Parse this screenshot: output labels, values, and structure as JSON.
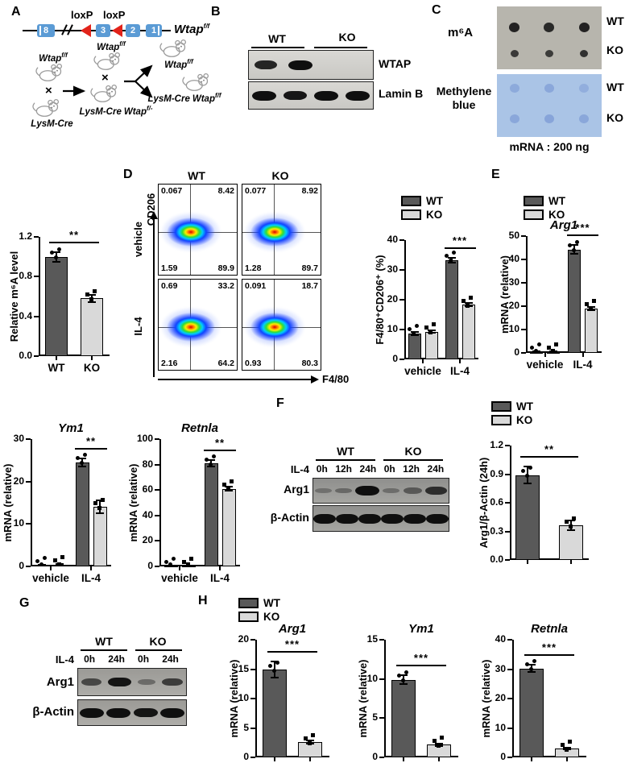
{
  "legend": {
    "wt": "WT",
    "ko": "KO"
  },
  "colors": {
    "wt": "#595959",
    "ko": "#d9d9d9",
    "exon": "#5b9bd5",
    "loxp": "#e2231a"
  },
  "panels": {
    "a": {
      "label": "A",
      "loxp_labels": [
        "loxP",
        "loxP"
      ],
      "exons": [
        "8",
        "3",
        "2",
        "1"
      ],
      "allele": {
        "base": "Wtap",
        "sup": "f/f"
      },
      "cross_symbol": "×",
      "mice": {
        "p_top": {
          "base": "Wtap",
          "sup": "f/f"
        },
        "p_bottom": {
          "pre": "LysM-Cre"
        },
        "f1_top": {
          "base": "Wtap",
          "sup": "f/f"
        },
        "f1_bottom": {
          "pre": "LysM-Cre",
          "base": "Wtap",
          "sup": "f/-"
        },
        "f2_top": {
          "base": "Wtap",
          "sup": "f/f"
        },
        "f2_bottom": {
          "pre": "LysM-Cre",
          "base": "Wtap",
          "sup": "f/f"
        }
      }
    },
    "b": {
      "label": "B",
      "groups": [
        "WT",
        "KO"
      ],
      "rows": [
        {
          "label": "WTAP",
          "bands": [
            0.85,
            1,
            0,
            0
          ]
        },
        {
          "label": "Lamin B",
          "bands": [
            1,
            0.95,
            1,
            1
          ]
        }
      ]
    },
    "c": {
      "label": "C",
      "m6a_label": "m⁶A",
      "mb_label_1": "Methylene",
      "mb_label_2": "blue",
      "row_labels": [
        "WT",
        "KO",
        "WT",
        "KO"
      ],
      "caption": "mRNA : 200 ng",
      "m6a": {
        "wt": [
          0.95,
          0.9,
          0.95
        ],
        "ko": [
          0.8,
          0.78,
          0.85
        ]
      },
      "mb": {
        "wt": [
          0.5,
          0.55,
          0.4
        ],
        "ko": [
          0.55,
          0.6,
          0.55
        ]
      }
    },
    "d": {
      "label": "D",
      "col_headers": [
        "WT",
        "KO"
      ],
      "row_labels": [
        "vehicle",
        "IL-4"
      ],
      "y_axis": "CD206",
      "x_axis": "F4/80",
      "plots": [
        {
          "quad": [
            "0.067",
            "8.42",
            "1.59",
            "89.9"
          ]
        },
        {
          "quad": [
            "0.077",
            "8.92",
            "1.28",
            "89.7"
          ]
        },
        {
          "quad": [
            "0.69",
            "33.2",
            "2.16",
            "64.2"
          ]
        },
        {
          "quad": [
            "0.091",
            "18.7",
            "0.93",
            "80.3"
          ]
        }
      ]
    },
    "e": {
      "label": "E"
    },
    "f": {
      "label": "F",
      "il4": "IL-4",
      "groups": [
        "WT",
        "KO"
      ],
      "timepoints": [
        "0h",
        "12h",
        "24h",
        "0h",
        "12h",
        "24h"
      ],
      "rows": [
        {
          "label": "Arg1",
          "bands": [
            0.06,
            0.14,
            1,
            0.1,
            0.3,
            0.72
          ]
        },
        {
          "label": "β-Actin",
          "bands": [
            1,
            1,
            1,
            1,
            1,
            1
          ]
        }
      ]
    },
    "g": {
      "label": "G",
      "il4": "IL-4",
      "groups": [
        "WT",
        "KO"
      ],
      "timepoints": [
        "0h",
        "24h",
        "0h",
        "24h"
      ],
      "rows": [
        {
          "label": "Arg1",
          "bands": [
            0.5,
            0.95,
            0.18,
            0.6
          ]
        },
        {
          "label": "β-Actin",
          "bands": [
            1,
            1,
            0.95,
            1
          ]
        }
      ]
    },
    "h": {
      "label": "H"
    }
  },
  "chart_data": [
    {
      "id": "relative-m6a",
      "type": "bar",
      "title": "",
      "ylabel": "Relative m⁶A level",
      "ylim": [
        0,
        1.2
      ],
      "yticks": [
        "0.0",
        "0.4",
        "0.8",
        "1.2"
      ],
      "categories": [
        ""
      ],
      "xlabels": "series",
      "series": [
        {
          "name": "WT",
          "values": [
            1.0
          ],
          "errors": [
            0.05
          ]
        },
        {
          "name": "KO",
          "values": [
            0.58
          ],
          "errors": [
            0.04
          ]
        }
      ],
      "sig": {
        "label": "**",
        "category": 0
      }
    },
    {
      "id": "f480-cd206-pct",
      "type": "bar",
      "title": "",
      "ylabel": "F4/80⁺CD206⁺ (%)",
      "ylim": [
        0,
        40
      ],
      "yticks": [
        "0",
        "10",
        "20",
        "30",
        "40"
      ],
      "categories": [
        "vehicle",
        "IL-4"
      ],
      "xlabels": "categories",
      "series": [
        {
          "name": "WT",
          "values": [
            8.7,
            33.3
          ],
          "errors": [
            0.5,
            0.8
          ]
        },
        {
          "name": "KO",
          "values": [
            9.2,
            18.3
          ],
          "errors": [
            0.4,
            0.5
          ]
        }
      ],
      "sig": {
        "label": "***",
        "category": 1
      }
    },
    {
      "id": "arg1-mrna-e",
      "type": "bar",
      "title": "Arg1",
      "ylabel": "mRNA (relative)",
      "ylim": [
        0,
        50
      ],
      "yticks": [
        "0",
        "10",
        "20",
        "30",
        "40",
        "50"
      ],
      "categories": [
        "vehicle",
        "IL-4"
      ],
      "xlabels": "categories",
      "series": [
        {
          "name": "WT",
          "values": [
            0.4,
            44.3
          ],
          "errors": [
            0.2,
            2.0
          ]
        },
        {
          "name": "KO",
          "values": [
            0.4,
            19.0
          ],
          "errors": [
            0.2,
            0.7
          ]
        }
      ],
      "sig": {
        "label": "***",
        "category": 1
      }
    },
    {
      "id": "ym1-mrna",
      "type": "bar",
      "title": "Ym1",
      "ylabel": "mRNA (relative)",
      "ylim": [
        0,
        30
      ],
      "yticks": [
        "0",
        "10",
        "20",
        "30"
      ],
      "categories": [
        "vehicle",
        "IL-4"
      ],
      "xlabels": "categories",
      "series": [
        {
          "name": "WT",
          "values": [
            0.3,
            24.5
          ],
          "errors": [
            0.15,
            1.0
          ]
        },
        {
          "name": "KO",
          "values": [
            0.4,
            14.0
          ],
          "errors": [
            0.15,
            1.5
          ]
        }
      ],
      "sig": {
        "label": "**",
        "category": 1
      }
    },
    {
      "id": "retnla-mrna",
      "type": "bar",
      "title": "Retnla",
      "ylabel": "mRNA (relative)",
      "ylim": [
        0,
        100
      ],
      "yticks": [
        "0",
        "20",
        "40",
        "60",
        "80",
        "100"
      ],
      "categories": [
        "vehicle",
        "IL-4"
      ],
      "xlabels": "categories",
      "series": [
        {
          "name": "WT",
          "values": [
            0.5,
            81.0
          ],
          "errors": [
            0.3,
            2.5
          ]
        },
        {
          "name": "KO",
          "values": [
            0.5,
            61.0
          ],
          "errors": [
            0.3,
            1.5
          ]
        }
      ],
      "sig": {
        "label": "**",
        "category": 1
      }
    },
    {
      "id": "arg1-actin-ratio",
      "type": "bar",
      "title": "",
      "ylabel": "Arg1/β-Actin (24h)",
      "ylim": [
        0,
        1.2
      ],
      "yticks": [
        "0.0",
        "0.3",
        "0.6",
        "0.9",
        "1.2"
      ],
      "categories": [
        ""
      ],
      "xlabels": "none",
      "series": [
        {
          "name": "WT",
          "values": [
            0.89
          ],
          "errors": [
            0.09
          ]
        },
        {
          "name": "KO",
          "values": [
            0.36
          ],
          "errors": [
            0.05
          ]
        }
      ],
      "sig": {
        "label": "**",
        "category": 0
      }
    },
    {
      "id": "arg1-mrna-h",
      "type": "bar",
      "title": "Arg1",
      "ylabel": "mRNA (relative)",
      "ylim": [
        0,
        20
      ],
      "yticks": [
        "0",
        "5",
        "10",
        "15",
        "20"
      ],
      "categories": [
        ""
      ],
      "xlabels": "none",
      "series": [
        {
          "name": "WT",
          "values": [
            14.9
          ],
          "errors": [
            1.4
          ]
        },
        {
          "name": "KO",
          "values": [
            2.6
          ],
          "errors": [
            0.25
          ]
        }
      ],
      "sig": {
        "label": "***",
        "category": 0
      }
    },
    {
      "id": "ym1-mrna-h",
      "type": "bar",
      "title": "Ym1",
      "ylabel": "mRNA (relative)",
      "ylim": [
        0,
        15
      ],
      "yticks": [
        "0",
        "5",
        "10",
        "15"
      ],
      "categories": [
        ""
      ],
      "xlabels": "none",
      "series": [
        {
          "name": "WT",
          "values": [
            9.9
          ],
          "errors": [
            0.55
          ]
        },
        {
          "name": "KO",
          "values": [
            1.6
          ],
          "errors": [
            0.15
          ]
        }
      ],
      "sig": {
        "label": "***",
        "category": 0
      }
    },
    {
      "id": "retnla-mrna-h",
      "type": "bar",
      "title": "Retnla",
      "ylabel": "mRNA (relative)",
      "ylim": [
        0,
        40
      ],
      "yticks": [
        "0",
        "10",
        "20",
        "30",
        "40"
      ],
      "categories": [
        ""
      ],
      "xlabels": "none",
      "series": [
        {
          "name": "WT",
          "values": [
            30.2
          ],
          "errors": [
            1.2
          ]
        },
        {
          "name": "KO",
          "values": [
            3.0
          ],
          "errors": [
            0.3
          ]
        }
      ],
      "sig": {
        "label": "***",
        "category": 0
      }
    }
  ]
}
